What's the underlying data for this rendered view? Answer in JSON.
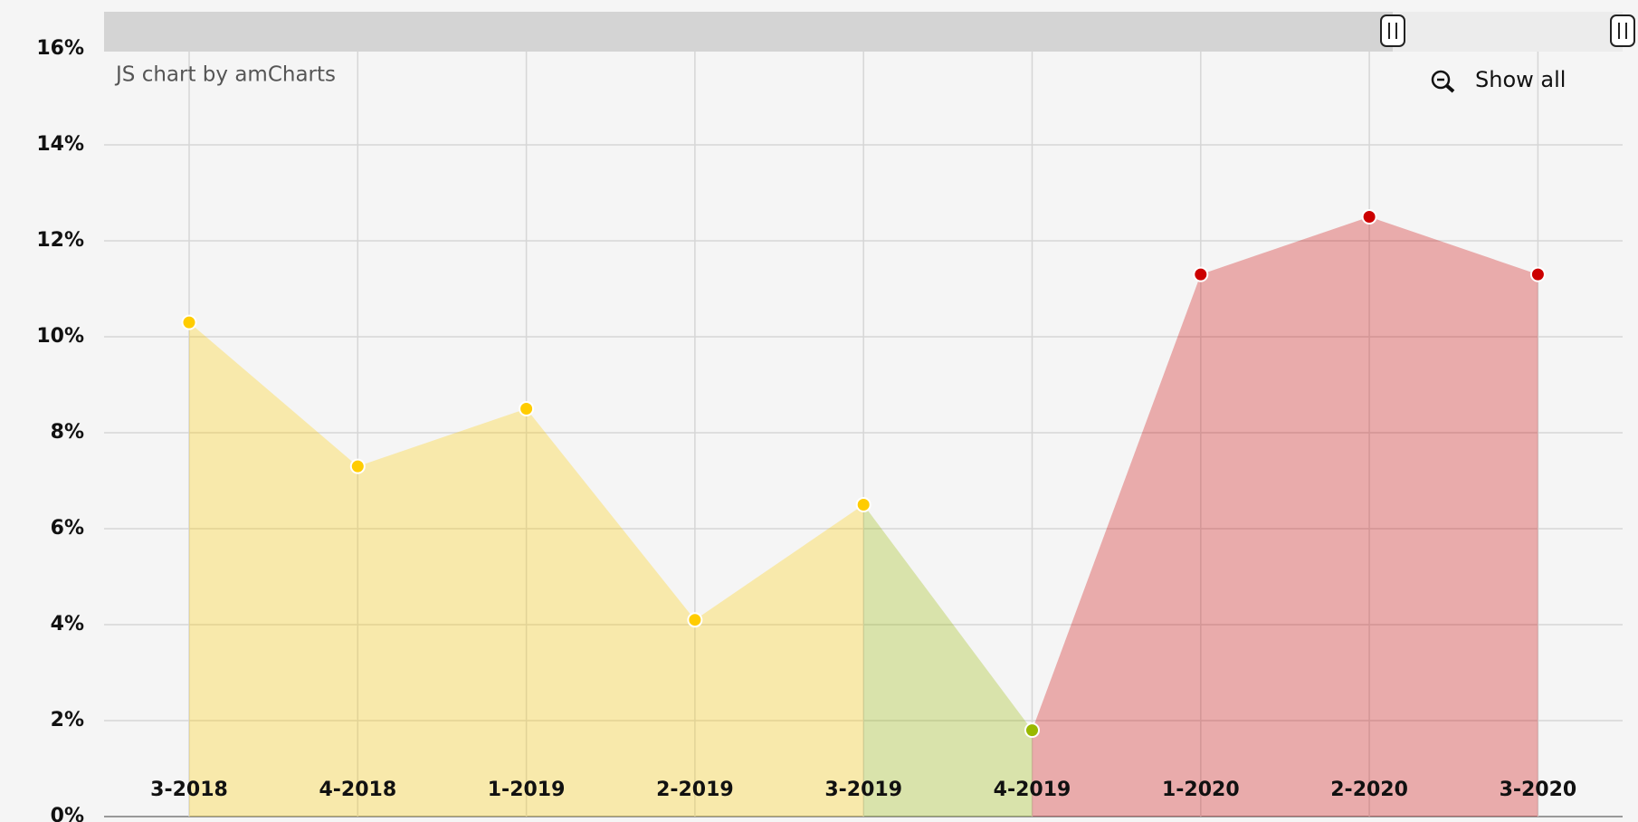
{
  "chart_data": {
    "type": "area",
    "credit": "JS chart by amCharts",
    "zoom_button": "Show all",
    "categories": [
      "3-2018",
      "4-2018",
      "1-2019",
      "2-2019",
      "3-2019",
      "4-2019",
      "1-2020",
      "2-2020",
      "3-2020"
    ],
    "values": [
      10.3,
      7.3,
      8.5,
      4.1,
      6.5,
      1.8,
      11.3,
      12.5,
      11.3
    ],
    "point_colors": [
      "#ffcc00",
      "#ffcc00",
      "#ffcc00",
      "#ffcc00",
      "#ffcc00",
      "#99b800",
      "#cc0000",
      "#cc0000",
      "#cc0000"
    ],
    "ylim": [
      0,
      16
    ],
    "yticks": [
      {
        "value": 0,
        "label": "0%"
      },
      {
        "value": 2,
        "label": "2%"
      },
      {
        "value": 4,
        "label": "4%"
      },
      {
        "value": 6,
        "label": "6%"
      },
      {
        "value": 8,
        "label": "8%"
      },
      {
        "value": 10,
        "label": "10%"
      },
      {
        "value": 12,
        "label": "12%"
      },
      {
        "value": 14,
        "label": "14%"
      },
      {
        "value": 16,
        "label": "16%"
      }
    ],
    "grid": true
  }
}
